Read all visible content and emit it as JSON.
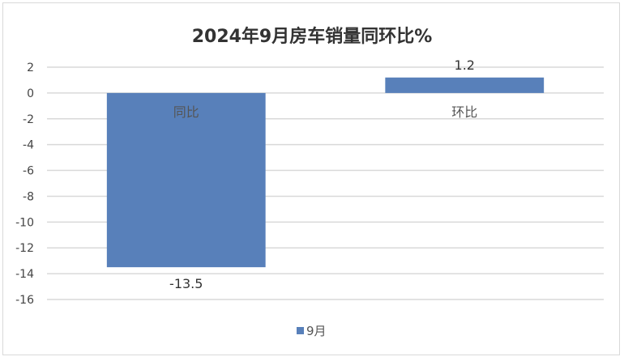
{
  "chart_data": {
    "type": "bar",
    "title": "2024年9月房车销量同环比%",
    "categories": [
      "同比",
      "环比"
    ],
    "series": [
      {
        "name": "9月",
        "values": [
          -13.5,
          1.2
        ],
        "color": "#5880ba"
      }
    ],
    "data_labels": [
      "-13.5",
      "1.2"
    ],
    "yticks": [
      2,
      0,
      -2,
      -4,
      -6,
      -8,
      -10,
      -12,
      -14,
      -16
    ],
    "ylim": [
      -16,
      2
    ],
    "grid": true,
    "legend": "bottom",
    "gridline_color": "#d9d9d9"
  }
}
